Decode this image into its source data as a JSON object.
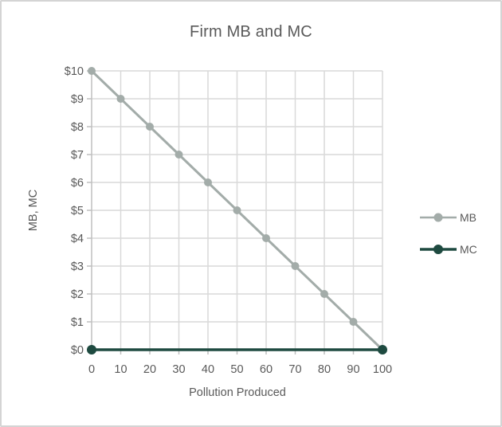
{
  "chart_data": {
    "type": "line",
    "title": "Firm MB and MC",
    "xlabel": "Pollution Produced",
    "ylabel": "MB, MC",
    "xlim": [
      0,
      100
    ],
    "ylim": [
      0,
      10
    ],
    "grid": true,
    "legend_position": "right",
    "x_ticks": {
      "values": [
        0,
        10,
        20,
        30,
        40,
        50,
        60,
        70,
        80,
        90,
        100
      ],
      "labels": [
        "0",
        "10",
        "20",
        "30",
        "40",
        "50",
        "60",
        "70",
        "80",
        "90",
        "100"
      ]
    },
    "y_ticks": {
      "values": [
        0,
        1,
        2,
        3,
        4,
        5,
        6,
        7,
        8,
        9,
        10
      ],
      "labels": [
        "$0",
        "$1",
        "$2",
        "$3",
        "$4",
        "$5",
        "$6",
        "$7",
        "$8",
        "$9",
        "$10"
      ]
    },
    "series": [
      {
        "name": "MB",
        "color": "#a3aca9",
        "marker": "circle",
        "marker_radius": 5,
        "line_width": 3,
        "x": [
          0,
          10,
          20,
          30,
          40,
          50,
          60,
          70,
          80,
          90,
          100
        ],
        "y": [
          10,
          9,
          8,
          7,
          6,
          5,
          4,
          3,
          2,
          1,
          0
        ]
      },
      {
        "name": "MC",
        "color": "#1e4a40",
        "marker": "circle",
        "marker_radius": 6,
        "line_width": 3.5,
        "x": [
          0,
          100
        ],
        "y": [
          0,
          0
        ]
      }
    ],
    "colors": {
      "text": "#595959",
      "gridline": "#d9d9d9",
      "axis": "#bfbfbf",
      "background": "#ffffff",
      "frame_border": "#d4d4d4"
    }
  }
}
